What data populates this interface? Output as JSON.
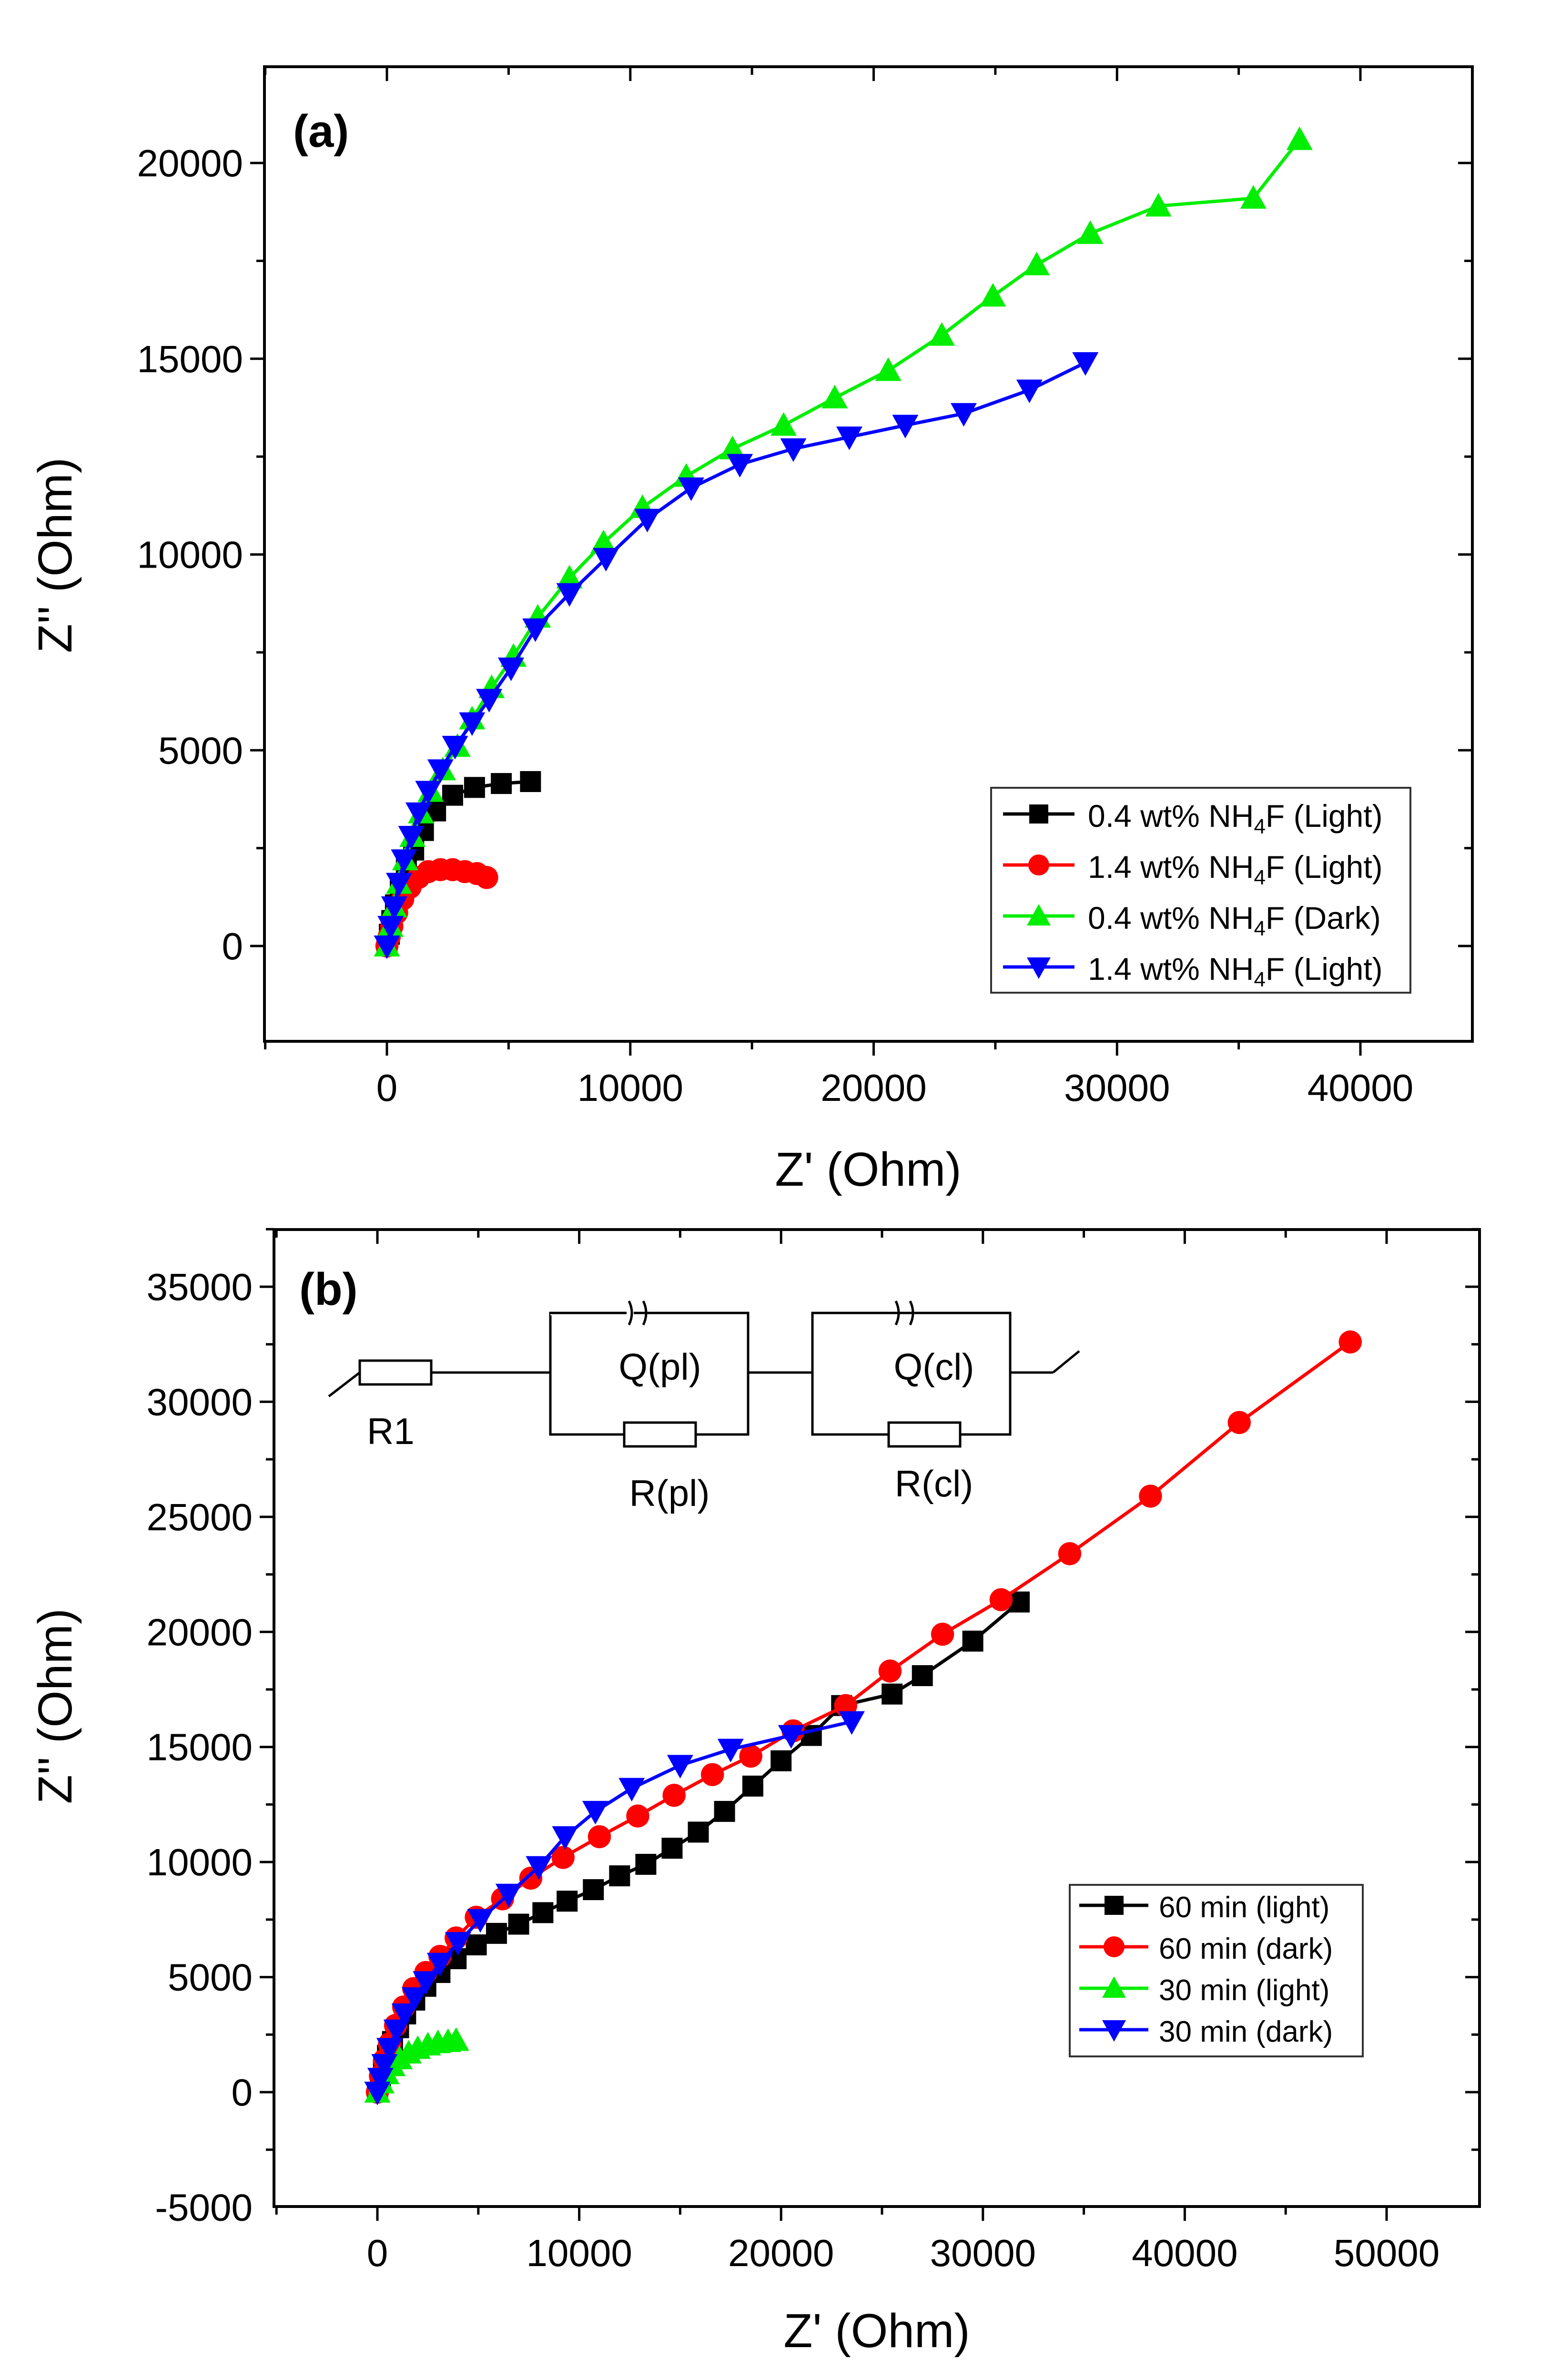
{
  "chart_data": [
    {
      "type": "line",
      "panel_label": "(a)",
      "xlabel": "Z' (Ohm)",
      "ylabel": "Z'' (Ohm)",
      "xlim": [
        -5000,
        45000
      ],
      "ylim": [
        -2500,
        22500
      ],
      "x_ticks": [
        0,
        10000,
        20000,
        30000,
        40000
      ],
      "y_ticks": [
        0,
        5000,
        10000,
        15000,
        20000
      ],
      "x_tick_labels": [
        "0",
        "10000",
        "20000",
        "30000",
        "40000"
      ],
      "y_tick_labels": [
        "0",
        "5000",
        "10000",
        "15000",
        "20000"
      ],
      "legend_position": "bottom-right",
      "series": [
        {
          "name_prefix": "0.4 wt% NH",
          "name_sub": "4",
          "name_suffix": "F (Light)",
          "color": "#000000",
          "marker": "square",
          "points": [
            [
              0,
              0
            ],
            [
              100,
              300
            ],
            [
              200,
              650
            ],
            [
              350,
              1050
            ],
            [
              550,
              1500
            ],
            [
              800,
              1950
            ],
            [
              1100,
              2450
            ],
            [
              1500,
              2950
            ],
            [
              2000,
              3450
            ],
            [
              2700,
              3850
            ],
            [
              3600,
              4050
            ],
            [
              4700,
              4150
            ],
            [
              5900,
              4200
            ]
          ]
        },
        {
          "name_prefix": "1.4 wt% NH",
          "name_sub": "4",
          "name_suffix": "F (Light)",
          "color": "#ff0000",
          "marker": "circle",
          "points": [
            [
              0,
              0
            ],
            [
              100,
              250
            ],
            [
              200,
              500
            ],
            [
              400,
              850
            ],
            [
              650,
              1200
            ],
            [
              950,
              1500
            ],
            [
              1300,
              1750
            ],
            [
              1700,
              1900
            ],
            [
              2200,
              1950
            ],
            [
              2700,
              1950
            ],
            [
              3200,
              1900
            ],
            [
              3700,
              1850
            ],
            [
              4100,
              1750
            ]
          ]
        },
        {
          "name_prefix": "0.4 wt% NH",
          "name_sub": "4",
          "name_suffix": "F (Dark)",
          "color": "#00ee00",
          "marker": "triangle-up",
          "points": [
            [
              0,
              0
            ],
            [
              150,
              500
            ],
            [
              300,
              1000
            ],
            [
              500,
              1600
            ],
            [
              750,
              2200
            ],
            [
              1050,
              2800
            ],
            [
              1400,
              3400
            ],
            [
              1800,
              3950
            ],
            [
              2300,
              4500
            ],
            [
              2900,
              5100
            ],
            [
              3500,
              5800
            ],
            [
              4300,
              6600
            ],
            [
              5200,
              7400
            ],
            [
              6200,
              8400
            ],
            [
              7500,
              9400
            ],
            [
              8900,
              10300
            ],
            [
              10500,
              11200
            ],
            [
              12300,
              12000
            ],
            [
              14200,
              12700
            ],
            [
              16300,
              13300
            ],
            [
              18400,
              14000
            ],
            [
              20600,
              14700
            ],
            [
              22800,
              15600
            ],
            [
              24900,
              16600
            ],
            [
              26700,
              17400
            ],
            [
              28900,
              18200
            ],
            [
              31700,
              18900
            ],
            [
              35600,
              19100
            ],
            [
              37500,
              20600
            ]
          ]
        },
        {
          "name_prefix": "1.4 wt% NH",
          "name_sub": "4",
          "name_suffix": "F (Light)",
          "color": "#0000ff",
          "marker": "triangle-down",
          "points": [
            [
              0,
              0
            ],
            [
              150,
              500
            ],
            [
              300,
              1000
            ],
            [
              500,
              1600
            ],
            [
              700,
              2200
            ],
            [
              1000,
              2800
            ],
            [
              1300,
              3400
            ],
            [
              1700,
              3950
            ],
            [
              2200,
              4500
            ],
            [
              2800,
              5100
            ],
            [
              3500,
              5700
            ],
            [
              4200,
              6300
            ],
            [
              5100,
              7100
            ],
            [
              6100,
              8100
            ],
            [
              7500,
              9000
            ],
            [
              9000,
              9900
            ],
            [
              10700,
              10900
            ],
            [
              12500,
              11700
            ],
            [
              14500,
              12300
            ],
            [
              16700,
              12700
            ],
            [
              19000,
              13000
            ],
            [
              21300,
              13300
            ],
            [
              23700,
              13600
            ],
            [
              26400,
              14200
            ],
            [
              28700,
              14900
            ]
          ]
        }
      ]
    },
    {
      "type": "line",
      "panel_label": "(b)",
      "xlabel": "Z' (Ohm)",
      "ylabel": "Z'' (Ohm)",
      "xlim": [
        -5000,
        55000
      ],
      "ylim": [
        -5000,
        37500
      ],
      "x_ticks": [
        0,
        10000,
        20000,
        30000,
        40000,
        50000
      ],
      "y_ticks": [
        -5000,
        0,
        5000,
        10000,
        15000,
        20000,
        25000,
        30000,
        35000
      ],
      "x_tick_labels": [
        "0",
        "10000",
        "20000",
        "30000",
        "40000",
        "50000"
      ],
      "y_tick_labels": [
        "-5000",
        "0",
        "5000",
        "10000",
        "15000",
        "20000",
        "25000",
        "30000",
        "35000"
      ],
      "legend_position": "bottom-right",
      "series": [
        {
          "name": "60 min (light)",
          "color": "#000000",
          "marker": "square",
          "points": [
            [
              0,
              0
            ],
            [
              150,
              500
            ],
            [
              300,
              1000
            ],
            [
              500,
              1600
            ],
            [
              750,
              2200
            ],
            [
              1050,
              2800
            ],
            [
              1400,
              3400
            ],
            [
              1850,
              4000
            ],
            [
              2400,
              4600
            ],
            [
              3100,
              5200
            ],
            [
              3900,
              5800
            ],
            [
              4900,
              6400
            ],
            [
              5900,
              6900
            ],
            [
              7000,
              7300
            ],
            [
              8200,
              7800
            ],
            [
              9400,
              8300
            ],
            [
              10700,
              8800
            ],
            [
              12000,
              9400
            ],
            [
              13300,
              9900
            ],
            [
              14600,
              10600
            ],
            [
              15900,
              11300
            ],
            [
              17200,
              12200
            ],
            [
              18600,
              13300
            ],
            [
              20000,
              14400
            ],
            [
              21500,
              15500
            ],
            [
              23000,
              16800
            ],
            [
              25500,
              17300
            ],
            [
              27000,
              18100
            ],
            [
              29500,
              19600
            ],
            [
              31800,
              21300
            ]
          ]
        },
        {
          "name": "60 min (dark)",
          "color": "#ff0000",
          "marker": "circle",
          "points": [
            [
              0,
              0
            ],
            [
              150,
              700
            ],
            [
              350,
              1400
            ],
            [
              600,
              2100
            ],
            [
              900,
              2900
            ],
            [
              1300,
              3700
            ],
            [
              1800,
              4500
            ],
            [
              2400,
              5200
            ],
            [
              3100,
              5900
            ],
            [
              3900,
              6700
            ],
            [
              4900,
              7600
            ],
            [
              6200,
              8400
            ],
            [
              7600,
              9300
            ],
            [
              9200,
              10200
            ],
            [
              11000,
              11100
            ],
            [
              12900,
              12000
            ],
            [
              14700,
              12900
            ],
            [
              16600,
              13800
            ],
            [
              18500,
              14600
            ],
            [
              20600,
              15700
            ],
            [
              23200,
              16800
            ],
            [
              25400,
              18300
            ],
            [
              28000,
              19900
            ],
            [
              30900,
              21400
            ],
            [
              34300,
              23400
            ],
            [
              38300,
              25900
            ],
            [
              42700,
              29100
            ],
            [
              48200,
              32600
            ]
          ]
        },
        {
          "name": "30 min (light)",
          "color": "#00ee00",
          "marker": "triangle-up",
          "points": [
            [
              0,
              0
            ],
            [
              200,
              400
            ],
            [
              450,
              800
            ],
            [
              750,
              1150
            ],
            [
              1100,
              1450
            ],
            [
              1550,
              1700
            ],
            [
              2000,
              1900
            ],
            [
              2500,
              2050
            ],
            [
              3000,
              2150
            ],
            [
              3500,
              2200
            ],
            [
              3900,
              2250
            ]
          ]
        },
        {
          "name": "30 min (dark)",
          "color": "#0000ff",
          "marker": "triangle-down",
          "points": [
            [
              0,
              0
            ],
            [
              150,
              600
            ],
            [
              350,
              1200
            ],
            [
              600,
              1900
            ],
            [
              950,
              2700
            ],
            [
              1350,
              3400
            ],
            [
              1850,
              4100
            ],
            [
              2400,
              4800
            ],
            [
              3100,
              5600
            ],
            [
              4000,
              6500
            ],
            [
              5100,
              7500
            ],
            [
              6500,
              8600
            ],
            [
              8000,
              9800
            ],
            [
              9300,
              11100
            ],
            [
              10800,
              12200
            ],
            [
              12600,
              13200
            ],
            [
              15000,
              14200
            ],
            [
              17500,
              14900
            ],
            [
              20500,
              15500
            ],
            [
              23500,
              16100
            ]
          ]
        }
      ],
      "circuit": {
        "elements": [
          "R1",
          "Q(pl)",
          "R(pl)",
          "Q(cl)",
          "R(cl)"
        ]
      }
    }
  ]
}
